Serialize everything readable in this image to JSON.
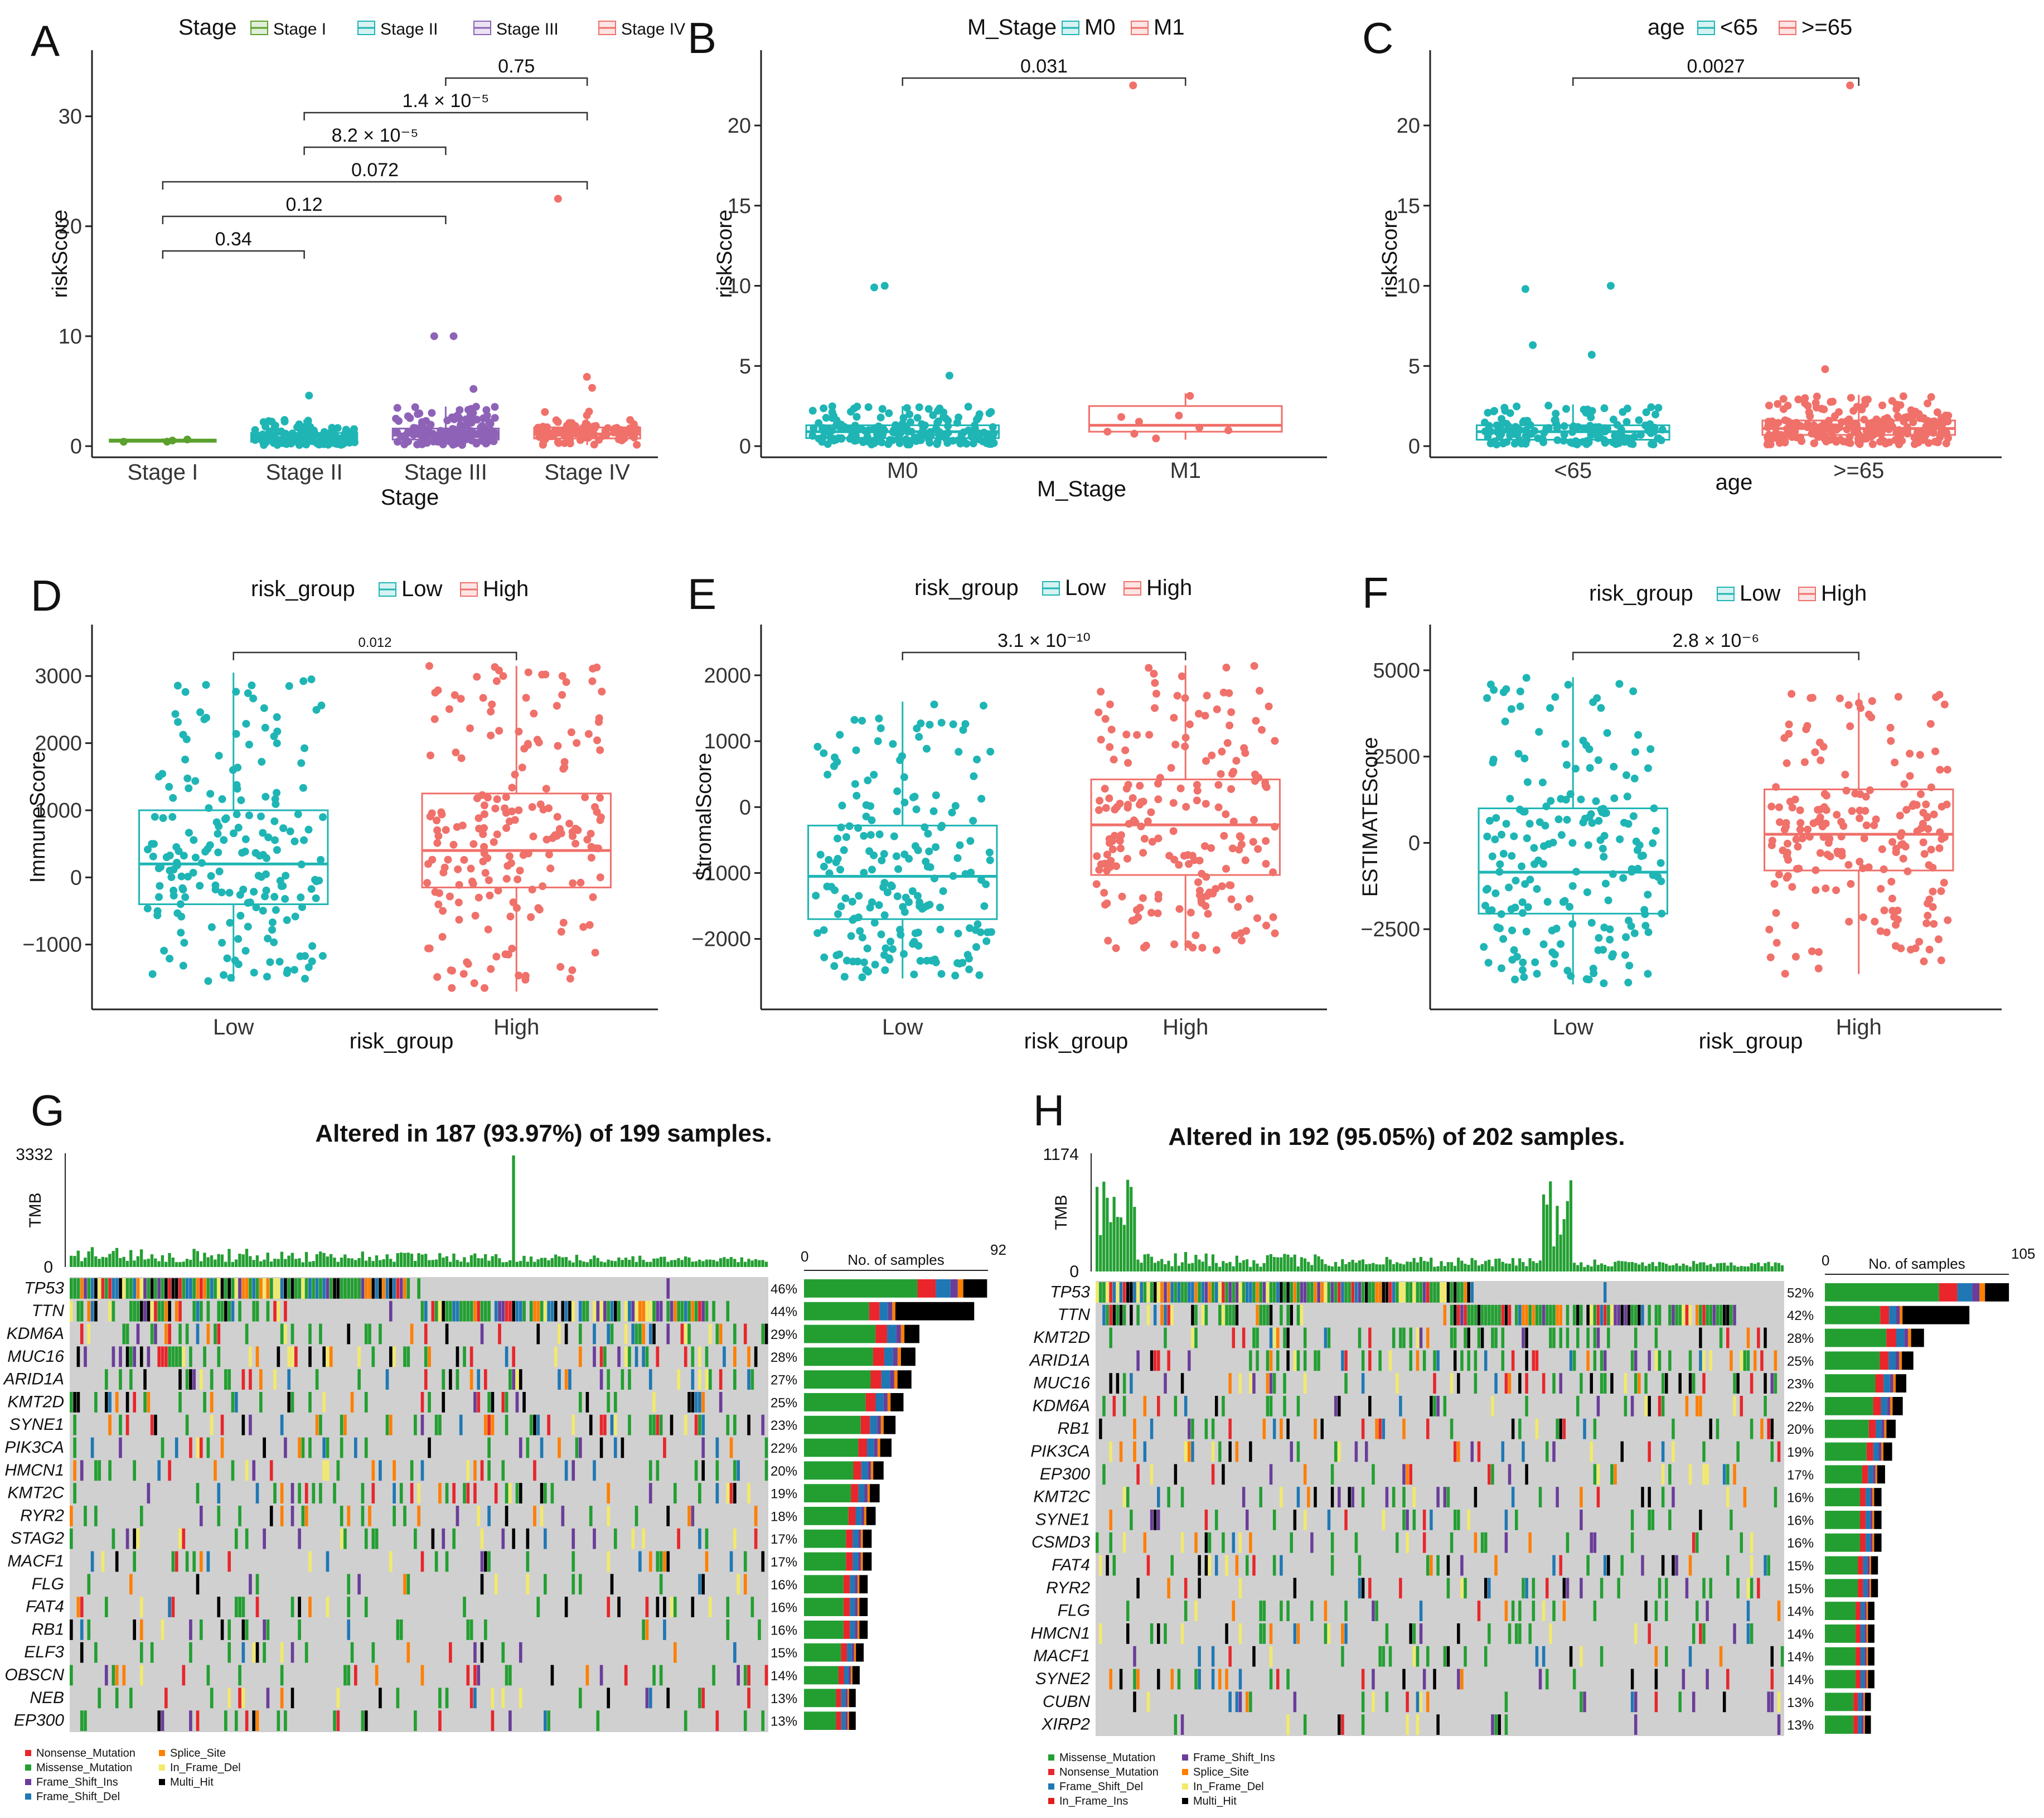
{
  "colors": {
    "teal": "#1fb5b5",
    "red": "#f0706a",
    "green": "#5aa02c",
    "purple": "#8e63b7",
    "missense": "#239f32",
    "nonsense": "#e8262b",
    "fsdel": "#1f78b4",
    "fsins": "#6a3d9a",
    "splice": "#ff7f00",
    "inframe": "#f2ea6a",
    "multi": "#000000",
    "grid": "#d0d0d0"
  },
  "chart_data": [
    {
      "panel": "A",
      "type": "box-jitter",
      "xlabel": "Stage",
      "ylabel": "riskScore",
      "legend_title": "Stage",
      "categories": [
        "Stage I",
        "Stage II",
        "Stage III",
        "Stage IV"
      ],
      "colors": [
        "#5aa02c",
        "#1fb5b5",
        "#8e63b7",
        "#f0706a"
      ],
      "ylim": [
        0,
        35
      ],
      "yticks": [
        "0",
        "10",
        "20",
        "30"
      ],
      "ytick_values": [
        0,
        10,
        20,
        30
      ],
      "boxes": [
        {
          "q1": 0.4,
          "med": 0.5,
          "q3": 0.6,
          "lo": 0.4,
          "hi": 0.7
        },
        {
          "q1": 0.4,
          "med": 0.8,
          "q3": 1.2,
          "lo": 0.1,
          "hi": 2.4
        },
        {
          "q1": 0.6,
          "med": 1.0,
          "q3": 1.6,
          "lo": 0.1,
          "hi": 3.6
        },
        {
          "q1": 0.7,
          "med": 1.1,
          "q3": 1.7,
          "lo": 0.1,
          "hi": 3.3
        }
      ],
      "n_points": [
        4,
        140,
        150,
        90
      ],
      "outliers": [
        [],
        [
          4.6
        ],
        [
          10.0,
          10.0,
          5.2
        ],
        [
          22.5,
          6.3,
          5.3
        ]
      ],
      "comparisons": [
        {
          "from": 2,
          "to": 3,
          "label": "0.75"
        },
        {
          "from": 1,
          "to": 3,
          "label": "1.4 × 10⁻⁵"
        },
        {
          "from": 1,
          "to": 2,
          "label": "8.2 × 10⁻⁵"
        },
        {
          "from": 0,
          "to": 3,
          "label": "0.072"
        },
        {
          "from": 0,
          "to": 2,
          "label": "0.12"
        },
        {
          "from": 0,
          "to": 1,
          "label": "0.34"
        }
      ]
    },
    {
      "panel": "B",
      "type": "box-jitter",
      "xlabel": "M_Stage",
      "ylabel": "riskScore",
      "legend_title": "M_Stage",
      "categories": [
        "M0",
        "M1"
      ],
      "colors": [
        "#1fb5b5",
        "#f0706a"
      ],
      "ylim": [
        0,
        24
      ],
      "yticks": [
        "0",
        "5",
        "10",
        "15",
        "20"
      ],
      "ytick_values": [
        0,
        5,
        10,
        15,
        20
      ],
      "boxes": [
        {
          "q1": 0.5,
          "med": 0.9,
          "q3": 1.3,
          "lo": 0.1,
          "hi": 2.5
        },
        {
          "q1": 0.9,
          "med": 1.3,
          "q3": 2.5,
          "lo": 0.4,
          "hi": 3.3
        }
      ],
      "n_points": [
        190,
        9
      ],
      "outliers": [
        [
          10.0,
          9.9,
          4.4
        ],
        [
          22.5
        ]
      ],
      "comparisons": [
        {
          "from": 0,
          "to": 1,
          "label": "0.031"
        }
      ]
    },
    {
      "panel": "C",
      "type": "box-jitter",
      "xlabel": "age",
      "ylabel": "riskScore",
      "legend_title": "age",
      "categories": [
        "<65",
        ">=65"
      ],
      "colors": [
        "#1fb5b5",
        "#f0706a"
      ],
      "ylim": [
        0,
        24
      ],
      "yticks": [
        "0",
        "5",
        "10",
        "15",
        "20"
      ],
      "ytick_values": [
        0,
        5,
        10,
        15,
        20
      ],
      "boxes": [
        {
          "q1": 0.4,
          "med": 0.9,
          "q3": 1.3,
          "lo": 0.1,
          "hi": 2.6
        },
        {
          "q1": 0.7,
          "med": 1.1,
          "q3": 1.6,
          "lo": 0.1,
          "hi": 3.2
        }
      ],
      "n_points": [
        150,
        250
      ],
      "outliers": [
        [
          10.0,
          9.8,
          6.3,
          5.7
        ],
        [
          22.5,
          4.8
        ]
      ],
      "comparisons": [
        {
          "from": 0,
          "to": 1,
          "label": "0.0027"
        }
      ]
    },
    {
      "panel": "D",
      "type": "box-jitter",
      "xlabel": "risk_group",
      "ylabel": "ImmuneScore",
      "legend_title": "risk_group",
      "categories": [
        "Low",
        "High"
      ],
      "colors": [
        "#1fb5b5",
        "#f0706a"
      ],
      "ylim": [
        -1800,
        3600
      ],
      "yticks": [
        "−1000",
        "0",
        "1000",
        "2000",
        "3000"
      ],
      "ytick_values": [
        -1000,
        0,
        1000,
        2000,
        3000
      ],
      "boxes": [
        {
          "q1": -400,
          "med": 200,
          "q3": 1000,
          "lo": -1550,
          "hi": 3050
        },
        {
          "q1": -150,
          "med": 400,
          "q3": 1250,
          "lo": -1700,
          "hi": 3150
        }
      ],
      "n_points": [
        200,
        200
      ],
      "outliers": [
        [],
        []
      ],
      "comparisons": [
        {
          "from": 0,
          "to": 1,
          "label": "0.012"
        }
      ]
    },
    {
      "panel": "E",
      "type": "box-jitter",
      "xlabel": "risk_group",
      "ylabel": "StromalScore",
      "legend_title": "risk_group",
      "categories": [
        "Low",
        "High"
      ],
      "colors": [
        "#1fb5b5",
        "#f0706a"
      ],
      "ylim": [
        -2900,
        2600
      ],
      "yticks": [
        "−2000",
        "−1000",
        "0",
        "1000",
        "2000"
      ],
      "ytick_values": [
        -2000,
        -1000,
        0,
        1000,
        2000
      ],
      "boxes": [
        {
          "q1": -1700,
          "med": -1050,
          "q3": -280,
          "lo": -2600,
          "hi": 1600
        },
        {
          "q1": -1030,
          "med": -270,
          "q3": 420,
          "lo": -2180,
          "hi": 2150
        }
      ],
      "n_points": [
        200,
        200
      ],
      "outliers": [
        [],
        []
      ],
      "comparisons": [
        {
          "from": 0,
          "to": 1,
          "label": "3.1 × 10⁻¹⁰"
        }
      ]
    },
    {
      "panel": "F",
      "type": "box-jitter",
      "xlabel": "risk_group",
      "ylabel": "ESTIMATEScore",
      "legend_title": "risk_group",
      "categories": [
        "Low",
        "High"
      ],
      "colors": [
        "#1fb5b5",
        "#f0706a"
      ],
      "ylim": [
        -4500,
        6000
      ],
      "yticks": [
        "−2500",
        "0",
        "2500",
        "5000"
      ],
      "ytick_values": [
        -2500,
        0,
        2500,
        5000
      ],
      "boxes": [
        {
          "q1": -2050,
          "med": -850,
          "q3": 1000,
          "lo": -4100,
          "hi": 4800
        },
        {
          "q1": -800,
          "med": 250,
          "q3": 1550,
          "lo": -3800,
          "hi": 4350
        }
      ],
      "n_points": [
        200,
        200
      ],
      "outliers": [
        [],
        []
      ],
      "comparisons": [
        {
          "from": 0,
          "to": 1,
          "label": "2.8 × 10⁻⁶"
        }
      ]
    },
    {
      "panel": "G",
      "type": "oncoplot",
      "title": "Altered in 187 (93.97%) of 199 samples.",
      "tmb_label": "TMB",
      "tmb_max": "3332",
      "tmb_min": "0",
      "bar_axis_label": "No. of samples",
      "bar_axis_min": "0",
      "bar_axis_max": "92",
      "bar_max": 92,
      "n_samples": 199,
      "genes": [
        "TP53",
        "TTN",
        "KDM6A",
        "MUC16",
        "ARID1A",
        "KMT2D",
        "SYNE1",
        "PIK3CA",
        "HMCN1",
        "KMT2C",
        "RYR2",
        "STAG2",
        "MACF1",
        "FLG",
        "FAT4",
        "RB1",
        "ELF3",
        "OBSCN",
        "NEB",
        "EP300"
      ],
      "pcts": [
        "46%",
        "44%",
        "29%",
        "28%",
        "27%",
        "25%",
        "23%",
        "22%",
        "20%",
        "19%",
        "18%",
        "17%",
        "17%",
        "16%",
        "16%",
        "16%",
        "15%",
        "14%",
        "13%",
        "13%"
      ],
      "pct_values": [
        46,
        44,
        29,
        28,
        27,
        25,
        23,
        22,
        20,
        19,
        18,
        17,
        17,
        16,
        16,
        16,
        15,
        14,
        13,
        13
      ],
      "legend": [
        {
          "label": "Nonsense_Mutation",
          "color": "#e8262b"
        },
        {
          "label": "Splice_Site",
          "color": "#ff7f00"
        },
        {
          "label": "Missense_Mutation",
          "color": "#239f32"
        },
        {
          "label": "In_Frame_Del",
          "color": "#f2ea6a"
        },
        {
          "label": "Frame_Shift_Ins",
          "color": "#6a3d9a"
        },
        {
          "label": "Multi_Hit",
          "color": "#000000"
        },
        {
          "label": "Frame_Shift_Del",
          "color": "#1f78b4"
        }
      ]
    },
    {
      "panel": "H",
      "type": "oncoplot",
      "title": "Altered in 192 (95.05%) of 202 samples.",
      "tmb_label": "TMB",
      "tmb_max": "1174",
      "tmb_min": "0",
      "bar_axis_label": "No. of samples",
      "bar_axis_min": "0",
      "bar_axis_max": "105",
      "bar_max": 105,
      "n_samples": 202,
      "genes": [
        "TP53",
        "TTN",
        "KMT2D",
        "ARID1A",
        "MUC16",
        "KDM6A",
        "RB1",
        "PIK3CA",
        "EP300",
        "KMT2C",
        "SYNE1",
        "CSMD3",
        "FAT4",
        "RYR2",
        "FLG",
        "HMCN1",
        "MACF1",
        "SYNE2",
        "CUBN",
        "XIRP2"
      ],
      "pcts": [
        "52%",
        "42%",
        "28%",
        "25%",
        "23%",
        "22%",
        "20%",
        "19%",
        "17%",
        "16%",
        "16%",
        "16%",
        "15%",
        "15%",
        "14%",
        "14%",
        "14%",
        "14%",
        "13%",
        "13%"
      ],
      "pct_values": [
        52,
        42,
        28,
        25,
        23,
        22,
        20,
        19,
        17,
        16,
        16,
        16,
        15,
        15,
        14,
        14,
        14,
        14,
        13,
        13
      ],
      "legend": [
        {
          "label": "Missense_Mutation",
          "color": "#239f32"
        },
        {
          "label": "Frame_Shift_Ins",
          "color": "#6a3d9a"
        },
        {
          "label": "Nonsense_Mutation",
          "color": "#e8262b"
        },
        {
          "label": "Splice_Site",
          "color": "#ff7f00"
        },
        {
          "label": "Frame_Shift_Del",
          "color": "#1f78b4"
        },
        {
          "label": "In_Frame_Del",
          "color": "#f2ea6a"
        },
        {
          "label": "In_Frame_Ins",
          "color": "#e31a1c"
        },
        {
          "label": "Multi_Hit",
          "color": "#000000"
        }
      ]
    }
  ]
}
